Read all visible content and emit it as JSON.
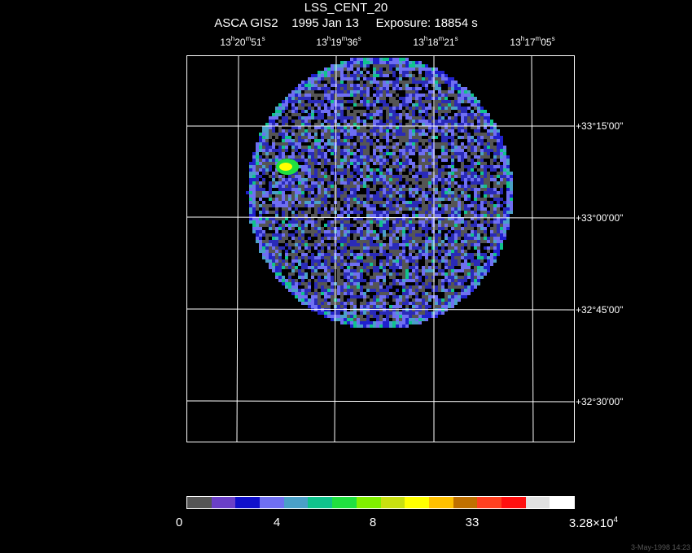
{
  "title": "LSS_CENT_20",
  "subtitle": "ASCA GIS2    1995 Jan 13     Exposure: 18854 s",
  "ra_labels": [
    {
      "h": "13",
      "m": "20",
      "s": "51"
    },
    {
      "h": "13",
      "m": "19",
      "s": "36"
    },
    {
      "h": "13",
      "m": "18",
      "s": "21"
    },
    {
      "h": "13",
      "m": "17",
      "s": "05"
    }
  ],
  "dec_labels": [
    "+33°15'00\"",
    "+33°00'00\"",
    "+32°45'00\"",
    "+32°30'00\""
  ],
  "colorbar": {
    "colors": [
      "#555555",
      "#6a3fc7",
      "#1010cc",
      "#6f6ff2",
      "#4aa0c8",
      "#10c38c",
      "#20e040",
      "#80f000",
      "#c8e010",
      "#ffff00",
      "#ffc000",
      "#c07000",
      "#ff4020",
      "#ff1010",
      "#e0e0e0",
      "#ffffff"
    ],
    "labels": [
      "0",
      "4",
      "8",
      "33"
    ],
    "max_mantissa": "3.28×10",
    "max_exponent": "4"
  },
  "timestamp": "3-May-1998 14:23",
  "colors": {
    "background": "#000000",
    "grid": "#ffffff"
  }
}
